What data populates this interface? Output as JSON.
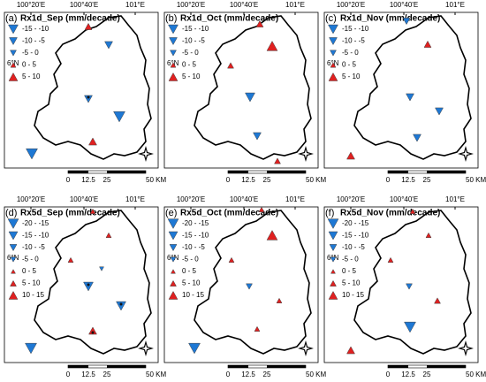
{
  "coordinates": {
    "lon": [
      "100°20'E",
      "100°40'E",
      "101°E"
    ],
    "lat": "6°N"
  },
  "scale_bar": {
    "labels": [
      "0",
      "12.5",
      "25",
      "50 KM"
    ]
  },
  "panels": [
    {
      "label": "(a)",
      "title": "Rx1d_Sep (mm/decade)",
      "legend": [
        "-15 - -10",
        "-10 - -5",
        "-5 - 0",
        "0 - 5",
        "5 - 10"
      ]
    },
    {
      "label": "(b)",
      "title": "Rx1d_Oct (mm/decade)",
      "legend": [
        "-15 - -10",
        "-10 - -5",
        "-5 - 0",
        "0 - 5",
        "5 - 10"
      ]
    },
    {
      "label": "(c)",
      "title": "Rx1d_Nov (mm/decade)",
      "legend": [
        "-15 - -10",
        "-10 - -5",
        "-5 - 0",
        "0 - 5",
        "5 - 10"
      ]
    },
    {
      "label": "(d)",
      "title": "Rx5d_Sep (mm/decade)",
      "legend": [
        "-20 - -15",
        "-15 - -10",
        "-10 - -5",
        "-5 - 0",
        "0 - 5",
        "5 - 10",
        "10 - 15"
      ]
    },
    {
      "label": "(e)",
      "title": "Rx5d_Oct (mm/decade)",
      "legend": [
        "-20 - -15",
        "-15 - -10",
        "-10 - -5",
        "-5 - 0",
        "0 - 5",
        "5 - 10",
        "10 - 15"
      ]
    },
    {
      "label": "(f)",
      "title": "Rx5d_Nov (mm/decade)",
      "legend": [
        "-20 - -15",
        "-15 - -10",
        "-10 - -5",
        "-5 - 0",
        "0 - 5",
        "5 - 10",
        "10 - 15"
      ]
    }
  ]
}
